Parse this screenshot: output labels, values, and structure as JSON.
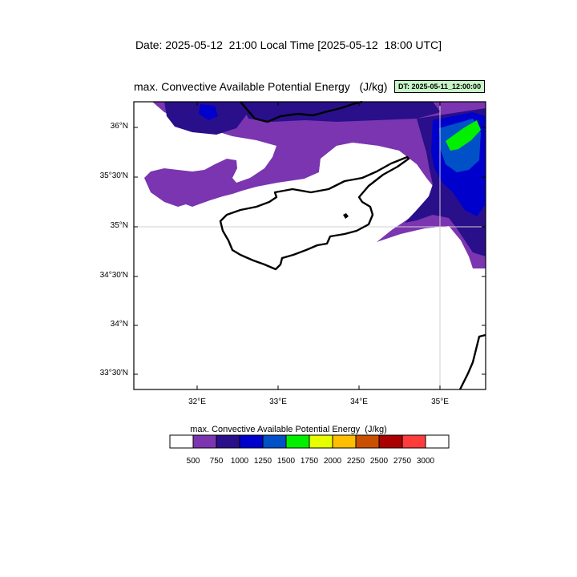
{
  "date_title": "Date: 2025-05-12  21:00 Local Time [2025-05-12  18:00 UTC]",
  "map_title": "max. Convective Available Potential Energy   (J/kg)",
  "dt_badge": "DT: 2025-05-11_12:00:00",
  "lat_labels": [
    "36°N",
    "35°30'N",
    "35°N",
    "34°30'N",
    "34°N",
    "33°30'N"
  ],
  "lon_labels": [
    "32°E",
    "33°E",
    "34°E",
    "35°E"
  ],
  "colorbar": {
    "title": "max. Convective Available Potential Energy  (J/kg)",
    "levels": [
      "500",
      "750",
      "1000",
      "1250",
      "1500",
      "1750",
      "2000",
      "2250",
      "2500",
      "2750",
      "3000"
    ],
    "colors": [
      "#ffffff",
      "#7b35b0",
      "#2a0f8a",
      "#0000cd",
      "#0050c8",
      "#00f000",
      "#e6ff00",
      "#ffbf00",
      "#c85000",
      "#aa0000",
      "#ff3c3c",
      "#ffffff"
    ]
  }
}
